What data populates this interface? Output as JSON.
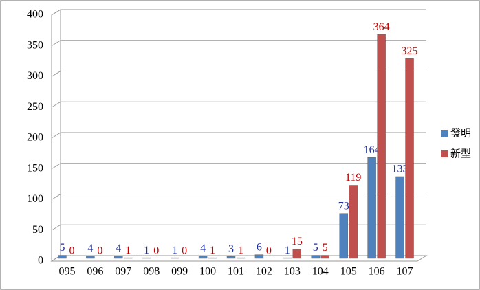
{
  "chart_data": {
    "type": "bar",
    "categories": [
      "095",
      "096",
      "097",
      "098",
      "099",
      "100",
      "101",
      "102",
      "103",
      "104",
      "105",
      "106",
      "107"
    ],
    "series": [
      {
        "name": "發明",
        "color": "#4f81bd",
        "label_color": "#1f2f9a",
        "values": [
          5,
          4,
          4,
          1,
          1,
          4,
          3,
          6,
          1,
          5,
          73,
          164,
          133
        ]
      },
      {
        "name": "新型",
        "color": "#c0504d",
        "label_color": "#c00000",
        "values": [
          0,
          0,
          1,
          0,
          0,
          1,
          1,
          0,
          15,
          5,
          119,
          364,
          325
        ]
      }
    ],
    "ylim": [
      0,
      400
    ],
    "yticks": [
      0,
      50,
      100,
      150,
      200,
      250,
      300,
      350,
      400
    ],
    "grid": true,
    "legend": "right",
    "data_labels": true
  }
}
